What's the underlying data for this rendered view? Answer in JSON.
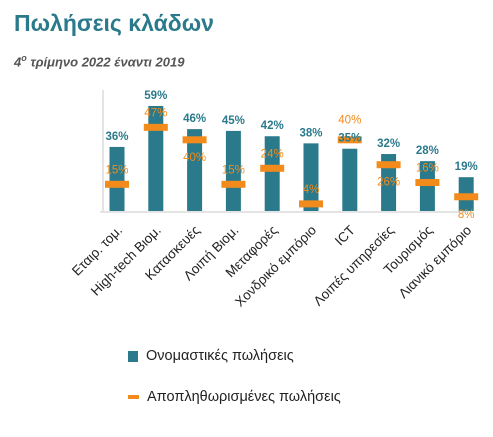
{
  "title": "Πωλήσεις κλάδων",
  "subtitle": "4ο τρίμηνο 2022 έναντι 2019",
  "chart_data": {
    "type": "bar",
    "categories": [
      "Εταιρ. τομ.",
      "High-tech Βιομ.",
      "Κατασκευές",
      "Λοιπή Βιομ.",
      "Μεταφορές",
      "Χονδρικό εμπόριο",
      "ICT",
      "Λοιπές υπηρεσίες",
      "Τουρισμός",
      "Λιανικό εμπόριο"
    ],
    "series": [
      {
        "name": "Ονομαστικές πωλήσεις",
        "type": "bar",
        "color": "#2a7a8c",
        "values": [
          36,
          59,
          46,
          45,
          42,
          38,
          35,
          32,
          28,
          19
        ],
        "labels": [
          "36%",
          "59%",
          "46%",
          "45%",
          "42%",
          "38%",
          "35%",
          "32%",
          "28%",
          "19%"
        ]
      },
      {
        "name": "Αποπληθωρισμένες πωλήσεις",
        "type": "marker",
        "color": "#f28b1c",
        "values": [
          15,
          47,
          40,
          15,
          24,
          4,
          40,
          26,
          16,
          8
        ],
        "labels": [
          "15%",
          "47%",
          "40%",
          "15%",
          "24%",
          "4%",
          "40%",
          "26%",
          "16%",
          "8%"
        ]
      }
    ],
    "ylim": [
      0,
      60
    ],
    "xlabel": "",
    "ylabel": "",
    "grid": false,
    "legend": "bottom"
  },
  "legend": {
    "nominal": "Ονομαστικές πωλήσεις",
    "deflated": "Αποπληθωρισμένες πωλήσεις"
  }
}
